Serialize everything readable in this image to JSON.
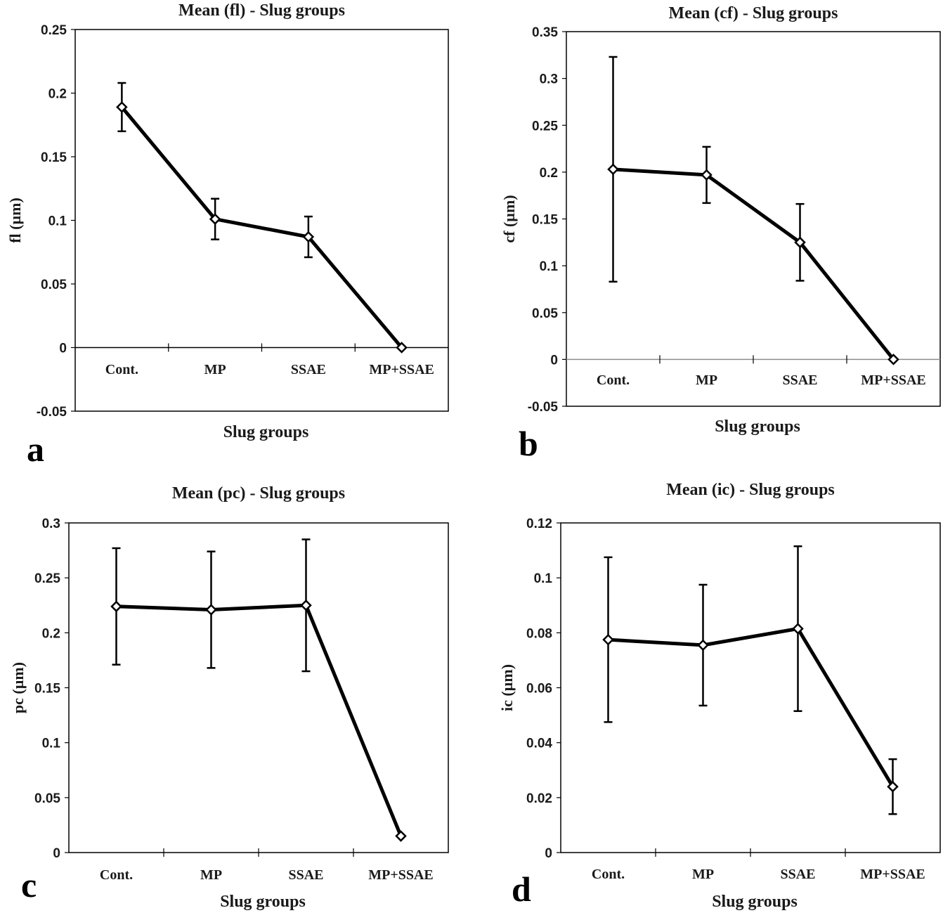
{
  "chart_data": [
    {
      "type": "line",
      "panel_label": "a",
      "title": "Mean (fl)  - Slug groups",
      "xlabel": "Slug groups",
      "ylabel": "fl (µm)",
      "categories": [
        "Cont.",
        "MP",
        "SSAE",
        "MP+SSAE"
      ],
      "values": [
        0.189,
        0.101,
        0.087,
        0.0
      ],
      "errors": [
        0.019,
        0.016,
        0.016,
        0.0
      ],
      "ylim": [
        -0.05,
        0.25
      ],
      "yticks": [
        "0.25",
        "0.2",
        "0.15",
        "0.1",
        "0.05",
        "0",
        "-0.05"
      ],
      "grid": false
    },
    {
      "type": "line",
      "panel_label": "b",
      "title": "Mean (cf)  - Slug groups",
      "xlabel": "Slug groups",
      "ylabel": "cf (µm)",
      "categories": [
        "Cont.",
        "MP",
        "SSAE",
        "MP+SSAE"
      ],
      "values": [
        0.203,
        0.197,
        0.125,
        0.0
      ],
      "errors": [
        0.12,
        0.03,
        0.041,
        0.0
      ],
      "ylim": [
        -0.05,
        0.35
      ],
      "yticks": [
        "0.35",
        "0.3",
        "0.25",
        "0.2",
        "0.15",
        "0.1",
        "0.05",
        "0",
        "-0.05"
      ],
      "grid": false
    },
    {
      "type": "line",
      "panel_label": "c",
      "title": "Mean (pc)  - Slug groups",
      "xlabel": "Slug groups",
      "ylabel": "pc (µm)",
      "categories": [
        "Cont.",
        "MP",
        "SSAE",
        "MP+SSAE"
      ],
      "values": [
        0.224,
        0.221,
        0.225,
        0.015
      ],
      "errors": [
        0.053,
        0.053,
        0.06,
        0.0
      ],
      "ylim": [
        0,
        0.3
      ],
      "yticks": [
        "0.3",
        "0.25",
        "0.2",
        "0.15",
        "0.1",
        "0.05",
        "0"
      ],
      "grid": false
    },
    {
      "type": "line",
      "panel_label": "d",
      "title": "Mean (ic)  - Slug groups",
      "xlabel": "Slug groups",
      "ylabel": "ic (µm)",
      "categories": [
        "Cont.",
        "MP",
        "SSAE",
        "MP+SSAE"
      ],
      "values": [
        0.0775,
        0.0755,
        0.0815,
        0.024
      ],
      "errors": [
        0.03,
        0.022,
        0.03,
        0.01
      ],
      "ylim": [
        0,
        0.12
      ],
      "yticks": [
        "0.12",
        "0.1",
        "0.08",
        "0.06",
        "0.04",
        "0.02",
        "0"
      ],
      "grid": false
    }
  ]
}
